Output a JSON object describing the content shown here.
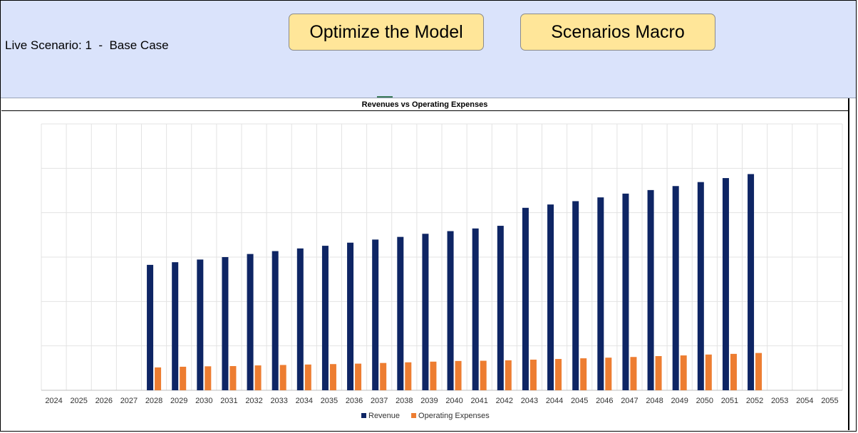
{
  "header": {
    "live_scenario": "Live Scenario: 1  -  Base Case",
    "optimize_label": "Optimize the Model",
    "scenarios_label": "Scenarios Macro"
  },
  "chart_data": {
    "type": "bar",
    "title": "Revenues vs Operating Expenses",
    "xlabel": "",
    "ylabel": "",
    "y_axis_labels_shown": false,
    "grid": true,
    "legend_position": "bottom",
    "ylim": [
      0,
      120
    ],
    "categories": [
      "2024",
      "2025",
      "2026",
      "2027",
      "2028",
      "2029",
      "2030",
      "2031",
      "2032",
      "2033",
      "2034",
      "2035",
      "2036",
      "2037",
      "2038",
      "2039",
      "2040",
      "2041",
      "2042",
      "2043",
      "2044",
      "2045",
      "2046",
      "2047",
      "2048",
      "2049",
      "2050",
      "2051",
      "2052",
      "2053",
      "2054",
      "2055"
    ],
    "series": [
      {
        "name": "Revenue",
        "color": "#0e2564",
        "values": [
          null,
          null,
          null,
          null,
          56.5,
          57.7,
          58.9,
          60.0,
          61.4,
          62.7,
          63.9,
          65.1,
          66.5,
          67.9,
          69.1,
          70.5,
          71.7,
          72.9,
          74.1,
          82.2,
          83.7,
          85.2,
          86.9,
          88.6,
          90.2,
          92.0,
          93.8,
          95.6,
          97.4,
          null,
          null,
          null
        ]
      },
      {
        "name": "Operating Expenses",
        "color": "#ed7d31",
        "values": [
          null,
          null,
          null,
          null,
          10.3,
          10.6,
          10.8,
          10.9,
          11.2,
          11.4,
          11.6,
          11.8,
          12.0,
          12.3,
          12.6,
          12.9,
          13.2,
          13.3,
          13.5,
          13.8,
          14.1,
          14.4,
          14.7,
          15.0,
          15.4,
          15.7,
          16.1,
          16.4,
          16.8,
          null,
          null,
          null
        ]
      }
    ]
  }
}
